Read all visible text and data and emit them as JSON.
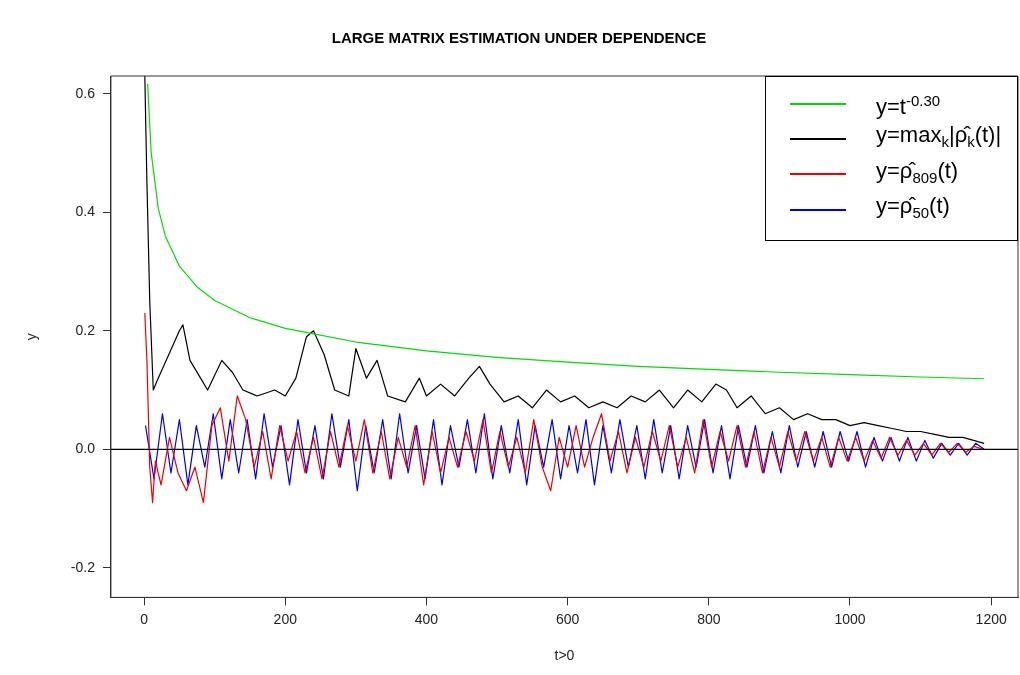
{
  "chart_data": {
    "type": "line",
    "title": "LARGE MATRIX ESTIMATION UNDER DEPENDENCE",
    "xlabel": "t>0",
    "ylabel": "y",
    "xlim": [
      -47,
      1238
    ],
    "ylim": [
      -0.25,
      0.63
    ],
    "xticks": [
      0,
      200,
      400,
      600,
      800,
      1000,
      1200
    ],
    "yticks": [
      {
        "value": -0.2,
        "label": "-0.2"
      },
      {
        "value": 0,
        "label": "0.0"
      },
      0.2,
      0.4,
      0.6
    ],
    "grid": false,
    "legend": "top right",
    "marker": "none",
    "line_style": "solid",
    "ref_lines": [
      {
        "axis": "y",
        "value": 0,
        "color": "#000000"
      }
    ],
    "series": [
      {
        "name": "y=t$^{-0.30}$",
        "color": "#00dd00",
        "x": [
          5,
          10,
          20,
          30,
          50,
          75,
          100,
          150,
          200,
          300,
          400,
          500,
          600,
          700,
          800,
          900,
          1000,
          1100,
          1190
        ],
        "values": [
          0.617,
          0.501,
          0.407,
          0.36,
          0.309,
          0.274,
          0.251,
          0.222,
          0.204,
          0.181,
          0.166,
          0.155,
          0.147,
          0.14,
          0.135,
          0.13,
          0.126,
          0.122,
          0.119
        ]
      },
      {
        "name": "y=max$_{k}$|ρ̂$_{k}$(t)|",
        "color": "#000000",
        "x": [
          1,
          4,
          8,
          13,
          20,
          35,
          50,
          55,
          65,
          80,
          90,
          110,
          125,
          140,
          160,
          185,
          200,
          215,
          230,
          240,
          255,
          270,
          290,
          300,
          315,
          330,
          345,
          370,
          390,
          400,
          420,
          440,
          460,
          475,
          490,
          510,
          530,
          550,
          570,
          590,
          610,
          630,
          650,
          670,
          690,
          710,
          730,
          750,
          770,
          790,
          810,
          825,
          840,
          860,
          880,
          900,
          920,
          940,
          960,
          980,
          1000,
          1020,
          1040,
          1060,
          1080,
          1100,
          1120,
          1140,
          1160,
          1175,
          1190
        ],
        "values": [
          0.63,
          0.45,
          0.25,
          0.1,
          0.12,
          0.16,
          0.2,
          0.21,
          0.15,
          0.12,
          0.1,
          0.15,
          0.13,
          0.1,
          0.09,
          0.1,
          0.09,
          0.12,
          0.19,
          0.2,
          0.16,
          0.1,
          0.09,
          0.17,
          0.12,
          0.15,
          0.09,
          0.08,
          0.12,
          0.09,
          0.11,
          0.09,
          0.12,
          0.14,
          0.11,
          0.08,
          0.09,
          0.07,
          0.1,
          0.08,
          0.09,
          0.07,
          0.08,
          0.07,
          0.09,
          0.08,
          0.1,
          0.07,
          0.1,
          0.08,
          0.11,
          0.1,
          0.07,
          0.09,
          0.06,
          0.07,
          0.05,
          0.06,
          0.05,
          0.05,
          0.04,
          0.045,
          0.04,
          0.035,
          0.03,
          0.03,
          0.025,
          0.02,
          0.02,
          0.015,
          0.01
        ]
      },
      {
        "name": "y=ρ̂$_{809}$(t)",
        "color": "#ee0000",
        "x": [
          1,
          4,
          8,
          12,
          16,
          24,
          36,
          48,
          60,
          72,
          84,
          96,
          108,
          120,
          132,
          144,
          156,
          168,
          180,
          192,
          204,
          216,
          228,
          240,
          252,
          264,
          276,
          288,
          300,
          312,
          324,
          336,
          348,
          360,
          372,
          384,
          396,
          408,
          420,
          432,
          444,
          456,
          468,
          480,
          492,
          504,
          516,
          528,
          540,
          552,
          564,
          576,
          588,
          600,
          612,
          624,
          636,
          648,
          660,
          672,
          684,
          696,
          708,
          720,
          732,
          744,
          756,
          768,
          780,
          792,
          804,
          816,
          828,
          840,
          852,
          864,
          876,
          888,
          900,
          912,
          924,
          936,
          948,
          960,
          972,
          984,
          996,
          1008,
          1020,
          1032,
          1044,
          1056,
          1068,
          1080,
          1092,
          1104,
          1116,
          1128,
          1140,
          1152,
          1164,
          1176,
          1188
        ],
        "values": [
          0.23,
          0.15,
          -0.03,
          -0.09,
          -0.02,
          -0.06,
          0.02,
          -0.04,
          -0.07,
          -0.03,
          -0.09,
          0.04,
          0.07,
          -0.02,
          0.09,
          0.05,
          -0.03,
          0.03,
          -0.05,
          0.04,
          -0.02,
          0.03,
          -0.04,
          0.02,
          -0.05,
          0.03,
          -0.03,
          0.04,
          -0.02,
          0.05,
          -0.04,
          0.03,
          -0.05,
          0.02,
          -0.03,
          0.04,
          -0.06,
          0.03,
          -0.04,
          0.02,
          -0.03,
          0.03,
          -0.02,
          0.05,
          -0.04,
          0.03,
          -0.03,
          0.02,
          -0.04,
          0.05,
          -0.03,
          -0.07,
          0.02,
          -0.03,
          0.04,
          -0.03,
          0.02,
          0.06,
          -0.02,
          0.03,
          -0.04,
          0.02,
          -0.03,
          0.03,
          -0.02,
          0.04,
          -0.03,
          0.02,
          -0.04,
          0.05,
          -0.03,
          0.03,
          -0.02,
          0.04,
          -0.03,
          0.03,
          -0.04,
          0.02,
          -0.03,
          0.03,
          -0.02,
          0.03,
          -0.02,
          0.02,
          -0.03,
          0.02,
          -0.02,
          0.02,
          -0.02,
          0.015,
          -0.015,
          0.02,
          -0.01,
          0.015,
          -0.01,
          0.01,
          -0.01,
          0.01,
          -0.005,
          0.01,
          -0.005,
          0.005,
          0.0
        ]
      },
      {
        "name": "y=ρ̂$_{50}$(t)",
        "color": "#0000ee",
        "x": [
          2,
          14,
          26,
          38,
          50,
          62,
          74,
          86,
          98,
          110,
          122,
          134,
          146,
          158,
          170,
          182,
          194,
          206,
          218,
          230,
          242,
          254,
          266,
          278,
          290,
          302,
          314,
          326,
          338,
          350,
          362,
          374,
          386,
          398,
          410,
          422,
          434,
          446,
          458,
          470,
          482,
          494,
          506,
          518,
          530,
          542,
          554,
          566,
          578,
          590,
          602,
          614,
          626,
          638,
          650,
          662,
          674,
          686,
          698,
          710,
          722,
          734,
          746,
          758,
          770,
          782,
          794,
          806,
          818,
          830,
          842,
          854,
          866,
          878,
          890,
          902,
          914,
          926,
          938,
          950,
          962,
          974,
          986,
          998,
          1010,
          1022,
          1034,
          1046,
          1058,
          1070,
          1082,
          1094,
          1106,
          1118,
          1130,
          1142,
          1154,
          1166,
          1178,
          1190
        ],
        "values": [
          0.04,
          -0.05,
          0.06,
          -0.04,
          0.05,
          -0.06,
          0.04,
          -0.03,
          0.06,
          -0.05,
          0.05,
          -0.04,
          0.05,
          -0.05,
          0.06,
          -0.03,
          0.04,
          -0.06,
          0.05,
          -0.04,
          0.04,
          -0.05,
          0.06,
          -0.03,
          0.05,
          -0.07,
          0.04,
          -0.04,
          0.05,
          -0.05,
          0.06,
          -0.04,
          0.04,
          -0.05,
          0.05,
          -0.06,
          0.04,
          -0.03,
          0.05,
          -0.04,
          0.06,
          -0.05,
          0.04,
          -0.04,
          0.05,
          -0.06,
          0.04,
          -0.03,
          0.05,
          -0.05,
          0.04,
          -0.04,
          0.05,
          -0.06,
          0.04,
          -0.04,
          0.05,
          -0.03,
          0.04,
          -0.05,
          0.05,
          -0.04,
          0.04,
          -0.05,
          0.04,
          -0.03,
          0.05,
          -0.04,
          0.04,
          -0.05,
          0.04,
          -0.03,
          0.04,
          -0.04,
          0.03,
          -0.04,
          0.04,
          -0.03,
          0.03,
          -0.03,
          0.03,
          -0.03,
          0.03,
          -0.02,
          0.03,
          -0.03,
          0.02,
          -0.02,
          0.02,
          -0.02,
          0.02,
          -0.02,
          0.015,
          -0.015,
          0.01,
          -0.01,
          0.01,
          -0.01,
          0.01,
          0.0
        ]
      }
    ]
  }
}
